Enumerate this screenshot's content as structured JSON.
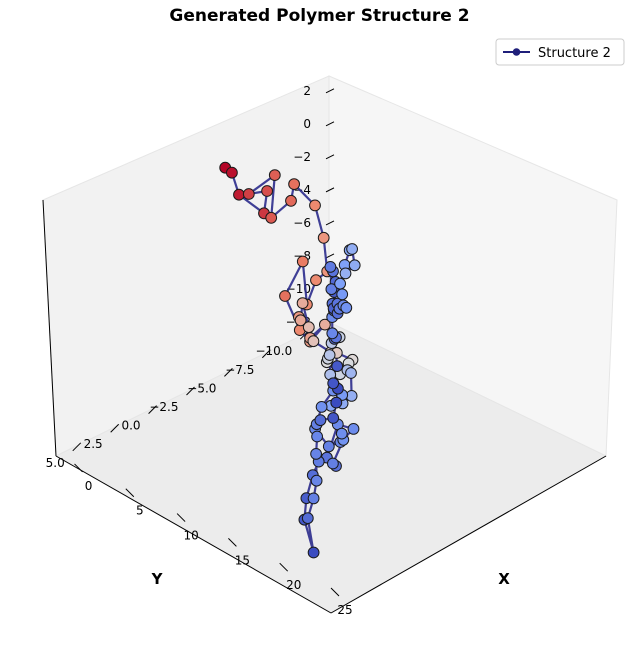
{
  "chart_data": {
    "type": "line-3d-scatter",
    "title": "Generated Polymer Structure 2",
    "xlabel": "X",
    "ylabel": "Y",
    "zlabel": "",
    "xlim": [
      -2,
      25
    ],
    "ylim": [
      -11.5,
      6.5
    ],
    "zlim": [
      -12,
      3.5
    ],
    "x_ticks": [
      "0",
      "5",
      "10",
      "15",
      "20",
      "25"
    ],
    "y_ticks": [
      "−10.0",
      "−7.5",
      "−5.0",
      "−2.5",
      "0.0",
      "2.5",
      "5.0"
    ],
    "z_ticks": [
      "2",
      "0",
      "−2",
      "−4",
      "−6",
      "−8",
      "−10",
      "−12"
    ],
    "x_tick_values": [
      0,
      5,
      10,
      15,
      20,
      25
    ],
    "y_tick_values": [
      -10,
      -7.5,
      -5,
      -2.5,
      0,
      2.5,
      5
    ],
    "z_tick_values": [
      2,
      0,
      -2,
      -4,
      -6,
      -8,
      -10,
      -12
    ],
    "grid": false,
    "legend_position": "top-right",
    "series": [
      {
        "name": "Structure 2",
        "line_color": "#2b2b8c",
        "marker": "circle",
        "colormap": "coolwarm",
        "points": [
          [
            0.6,
            -2.9,
            2.0
          ],
          [
            1.1,
            -3.0,
            1.8
          ],
          [
            1.5,
            -3.2,
            0.5
          ],
          [
            2.6,
            -4.1,
            -0.7
          ],
          [
            3.5,
            -3.7,
            1.1
          ],
          [
            2.9,
            -2.9,
            1.1
          ],
          [
            4.1,
            -3.8,
            2.2
          ],
          [
            3.9,
            -3.7,
            -0.4
          ],
          [
            4.5,
            -4.6,
            0.4
          ],
          [
            4.8,
            -4.6,
            1.5
          ],
          [
            5.8,
            -5.3,
            0.2
          ],
          [
            6.5,
            -5.4,
            -1.6
          ],
          [
            6.4,
            -5.7,
            -3.8
          ],
          [
            5.9,
            -5.3,
            -4.3
          ],
          [
            5.9,
            -4.7,
            -5.5
          ],
          [
            5.2,
            -4.9,
            -3.2
          ],
          [
            4.8,
            -4.0,
            -5.0
          ],
          [
            5.8,
            -4.3,
            -6.9
          ],
          [
            6.8,
            -4.3,
            -7.3
          ],
          [
            7.8,
            -4.6,
            -6.1
          ],
          [
            7.1,
            -4.1,
            -6.9
          ],
          [
            6.6,
            -3.7,
            -5.6
          ],
          [
            7.5,
            -3.2,
            -5.3
          ],
          [
            7.7,
            -3.2,
            -4.2
          ],
          [
            8.6,
            -3.0,
            -5.3
          ],
          [
            8.9,
            -3.1,
            -6.1
          ],
          [
            9.7,
            -3.7,
            -6.8
          ],
          [
            9.4,
            -4.3,
            -7.2
          ],
          [
            10.2,
            -4.8,
            -7.6
          ],
          [
            10.7,
            -4.2,
            -7.4
          ],
          [
            11.2,
            -3.3,
            -7.5
          ],
          [
            10.5,
            -2.9,
            -6.8
          ],
          [
            11.2,
            -2.5,
            -6.2
          ],
          [
            11.6,
            -3.0,
            -5.0
          ],
          [
            12.3,
            -2.0,
            -4.7
          ],
          [
            12.4,
            -1.8,
            -5.3
          ],
          [
            12.9,
            -1.5,
            -6.2
          ],
          [
            12.8,
            -2.7,
            -6.5
          ],
          [
            13.6,
            -2.4,
            -6.3
          ],
          [
            14.1,
            -2.1,
            -7.4
          ],
          [
            14.4,
            -1.3,
            -7.4
          ],
          [
            14.9,
            -0.2,
            -6.9
          ],
          [
            15.7,
            -0.4,
            -6.1
          ],
          [
            15.3,
            -0.1,
            -5.4
          ],
          [
            16.3,
            0.6,
            -5.2
          ],
          [
            16.2,
            1.3,
            -5.9
          ],
          [
            16.6,
            2.0,
            -6.8
          ],
          [
            17.2,
            1.5,
            -7.9
          ],
          [
            17.0,
            0.6,
            -8.1
          ],
          [
            16.5,
            -0.6,
            -8.0
          ],
          [
            16.6,
            0.5,
            -7.2
          ],
          [
            17.9,
            2.1,
            -8.1
          ],
          [
            18.2,
            1.7,
            -8.7
          ],
          [
            17.3,
            1.3,
            -9.0
          ],
          [
            16.1,
            -0.2,
            -8.6
          ],
          [
            16.4,
            0.1,
            -8.0
          ],
          [
            17.4,
            2.3,
            -8.4
          ],
          [
            18.3,
            3.3,
            -8.5
          ],
          [
            19.3,
            4.4,
            -9.1
          ],
          [
            19.7,
            4.8,
            -10.1
          ],
          [
            20.3,
            4.6,
            -12.0
          ],
          [
            18.4,
            3.7,
            -10.9
          ],
          [
            17.2,
            2.5,
            -10.6
          ],
          [
            16.9,
            2.1,
            -9.8
          ],
          [
            17.0,
            2.2,
            -8.1
          ],
          [
            16.8,
            2.0,
            -7.2
          ],
          [
            17.2,
            2.3,
            -6.2
          ],
          [
            18.3,
            2.8,
            -5.4
          ],
          [
            19.7,
            2.9,
            -4.8
          ],
          [
            20.3,
            3.1,
            -3.6
          ],
          [
            20.3,
            3.0,
            -2.8
          ],
          [
            19.7,
            2.9,
            -2.7
          ],
          [
            19.5,
            2.5,
            -1.9
          ],
          [
            18.8,
            2.2,
            -0.6
          ],
          [
            17.9,
            1.5,
            -1.1
          ],
          [
            16.8,
            1.0,
            -1.4
          ],
          [
            16.5,
            0.8,
            -0.6
          ],
          [
            17.4,
            1.3,
            0.3
          ],
          [
            18.3,
            2.0,
            1.3
          ],
          [
            19.0,
            2.4,
            1.4
          ],
          [
            19.2,
            2.5,
            2.5
          ],
          [
            18.6,
            2.0,
            2.7
          ],
          [
            17.9,
            1.7,
            3.0
          ],
          [
            17.5,
            1.6,
            3.1
          ],
          [
            17.3,
            1.4,
            1.6
          ],
          [
            17.9,
            1.4,
            0.9
          ],
          [
            18.2,
            1.6,
            0.5
          ],
          [
            17.5,
            1.0,
            0.3
          ],
          [
            16.7,
            0.2,
            -0.1
          ],
          [
            16.1,
            -0.4,
            -0.7
          ],
          [
            15.7,
            -0.4,
            0.0
          ],
          [
            15.2,
            -0.6,
            0.4
          ],
          [
            15.2,
            -0.9,
            1.4
          ],
          [
            14.8,
            -1.5,
            1.9
          ],
          [
            14.3,
            -2.0,
            1.6
          ],
          [
            14.4,
            -2.1,
            0.6
          ],
          [
            14.1,
            -1.7,
            0.2
          ]
        ]
      }
    ]
  }
}
